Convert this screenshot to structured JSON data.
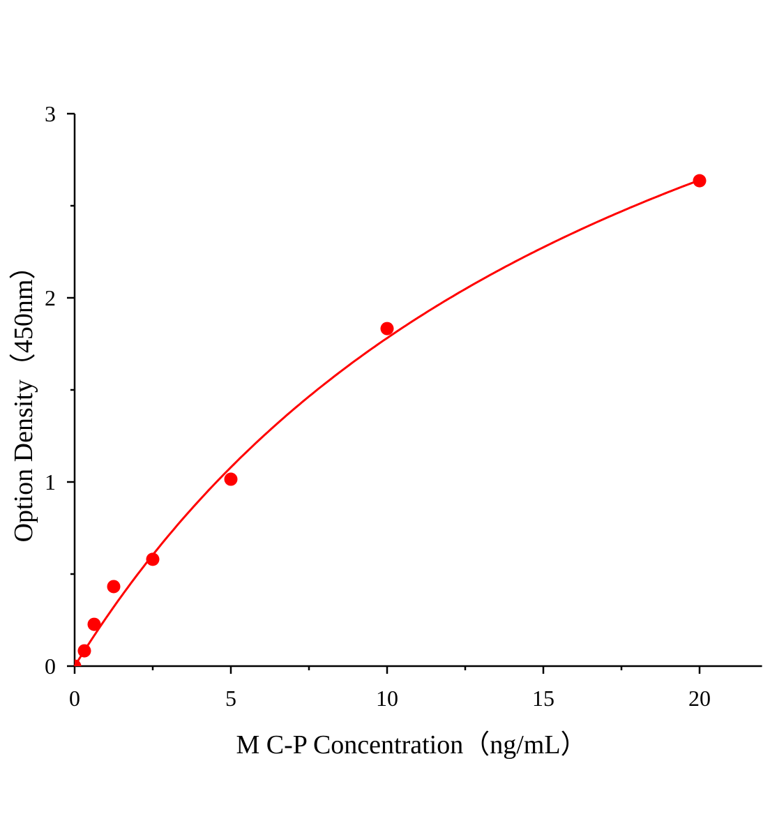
{
  "chart_data": {
    "type": "scatter",
    "title": "",
    "xlabel": "M C-P Concentration（ng/mL）",
    "ylabel": "Option Density（450nm）",
    "xlim": [
      0,
      22
    ],
    "ylim": [
      0,
      3
    ],
    "xticks": [
      "0",
      "5",
      "10",
      "15",
      "20"
    ],
    "yticks": [
      "0",
      "1",
      "2",
      "3"
    ],
    "grid": false,
    "legend": "none",
    "colors": {
      "points": "#ff0000",
      "curve": "#ff0000",
      "axis": "#000000"
    },
    "series": [
      {
        "type": "scatter",
        "x": [
          0,
          0.3125,
          0.625,
          1.25,
          2.5,
          5,
          10,
          20
        ],
        "y": [
          0.0,
          0.083,
          0.227,
          0.432,
          0.58,
          1.015,
          1.833,
          2.636
        ]
      },
      {
        "type": "line",
        "x": [
          0,
          0.5,
          1,
          1.5,
          2,
          3,
          4,
          5,
          6,
          7,
          8,
          9,
          10,
          12,
          14,
          16,
          18,
          20
        ],
        "y": [
          0,
          0.135,
          0.265,
          0.389,
          0.508,
          0.731,
          0.936,
          1.125,
          1.3,
          1.462,
          1.614,
          1.755,
          1.787,
          2.036,
          2.258,
          2.456,
          2.627,
          2.64
        ]
      }
    ]
  }
}
